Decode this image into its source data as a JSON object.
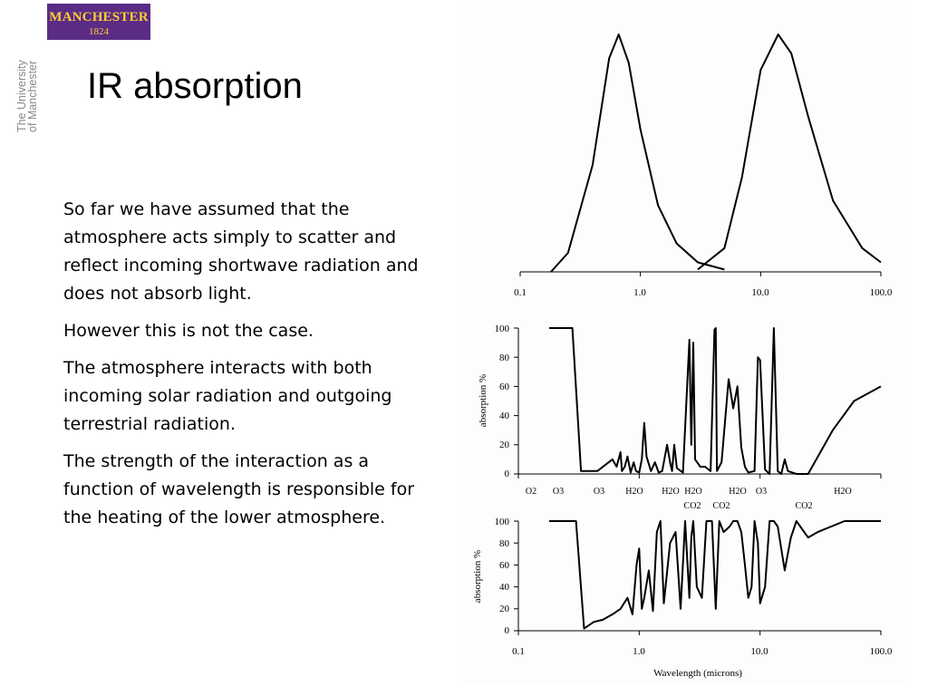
{
  "logo": {
    "name": "MANCHESTER",
    "year": "1824",
    "vertical_lines": [
      "The University",
      "of Manchester"
    ]
  },
  "title": "IR absorption",
  "paragraphs": [
    "So far we have assumed that the atmosphere acts simply to scatter and reflect incoming shortwave radiation and does not absorb light.",
    "However this is not the case.",
    "The atmosphere interacts with both incoming solar radiation and outgoing terrestrial radiation.",
    "The strength of the interaction as a function of wavelength is responsible for the heating of the lower atmosphere."
  ],
  "chart_data": [
    {
      "type": "line",
      "x_ticks": [
        "0.1",
        "1.0",
        "10.0",
        "100.0"
      ],
      "x_scale": "log",
      "xlim": [
        0.1,
        100
      ],
      "y_axis_labels": "none",
      "series": [
        {
          "x": [
            0.18,
            0.25,
            0.4,
            0.55,
            0.66,
            0.8,
            1.0,
            1.4,
            2.0,
            3.0,
            5.0
          ],
          "y": [
            0,
            8,
            45,
            90,
            100,
            88,
            60,
            28,
            12,
            4,
            1
          ]
        },
        {
          "x": [
            3.0,
            5.0,
            7.0,
            10.0,
            14.0,
            18.0,
            25.0,
            40.0,
            70.0,
            100.0
          ],
          "y": [
            1,
            10,
            40,
            85,
            100,
            92,
            65,
            30,
            10,
            4
          ]
        }
      ]
    },
    {
      "type": "line",
      "ylabel": "absorption %",
      "ylim": [
        0,
        100
      ],
      "y_ticks": [
        "100",
        "80",
        "60",
        "40",
        "20",
        "0"
      ],
      "x_scale": "log",
      "xlim": [
        0.1,
        100
      ],
      "gas_labels_row1": [
        "O2",
        "O3",
        "O3",
        "H2O",
        "H2O",
        "H2O",
        "H2O",
        "O3",
        "H2O"
      ],
      "gas_labels_row2": [
        "CO2",
        "CO2",
        "CO2"
      ],
      "series": [
        {
          "x": [
            0.18,
            0.22,
            0.28,
            0.33,
            0.45,
            0.6,
            0.65,
            0.7,
            0.72,
            0.76,
            0.8,
            0.85,
            0.9,
            0.94,
            1.0,
            1.05,
            1.1,
            1.15,
            1.25,
            1.35,
            1.45,
            1.55,
            1.7,
            1.8,
            1.87,
            1.95,
            2.05,
            2.3,
            2.6,
            2.7,
            2.8,
            2.9,
            3.2,
            3.5,
            3.9,
            4.2,
            4.3,
            4.4,
            4.8,
            5.5,
            6.0,
            6.5,
            7.0,
            7.5,
            8.0,
            9.0,
            9.6,
            10.0,
            11.0,
            12.0,
            13.0,
            14.0,
            15.0,
            16.0,
            17.0,
            20.0,
            25.0,
            40.0,
            60.0,
            100.0
          ],
          "y": [
            100,
            100,
            100,
            2,
            2,
            10,
            5,
            15,
            2,
            5,
            12,
            1,
            8,
            2,
            1,
            10,
            35,
            12,
            2,
            8,
            1,
            2,
            20,
            8,
            2,
            20,
            4,
            1,
            92,
            20,
            90,
            10,
            5,
            5,
            2,
            99,
            100,
            2,
            8,
            65,
            45,
            60,
            18,
            5,
            1,
            2,
            80,
            78,
            3,
            0,
            100,
            2,
            0,
            10,
            2,
            0,
            0,
            30,
            50,
            60
          ]
        }
      ]
    },
    {
      "type": "line",
      "xlabel": "Wavelength (microns)",
      "ylabel": "absorption %",
      "ylim": [
        0,
        100
      ],
      "y_ticks": [
        "100",
        "80",
        "60",
        "40",
        "20",
        "0"
      ],
      "x_ticks": [
        "0.1",
        "1.0",
        "10.0",
        "100.0"
      ],
      "x_scale": "log",
      "xlim": [
        0.1,
        100
      ],
      "series": [
        {
          "x": [
            0.18,
            0.25,
            0.3,
            0.35,
            0.42,
            0.5,
            0.6,
            0.7,
            0.8,
            0.88,
            0.95,
            1.0,
            1.05,
            1.1,
            1.2,
            1.3,
            1.4,
            1.5,
            1.6,
            1.8,
            2.0,
            2.2,
            2.4,
            2.6,
            2.7,
            2.8,
            3.0,
            3.3,
            3.6,
            4.0,
            4.3,
            4.6,
            5.0,
            5.6,
            6.0,
            6.5,
            7.0,
            7.5,
            8.0,
            8.5,
            9.0,
            9.6,
            10.0,
            11.0,
            12.0,
            13.0,
            14.0,
            16.0,
            18.0,
            20.0,
            25.0,
            30.0,
            50.0,
            100.0
          ],
          "y": [
            100,
            100,
            100,
            2,
            8,
            10,
            15,
            20,
            30,
            15,
            60,
            75,
            20,
            30,
            55,
            18,
            90,
            100,
            25,
            80,
            90,
            20,
            100,
            30,
            85,
            100,
            40,
            30,
            100,
            100,
            20,
            100,
            90,
            95,
            100,
            100,
            90,
            60,
            30,
            40,
            100,
            80,
            25,
            40,
            100,
            100,
            95,
            55,
            85,
            100,
            85,
            90,
            100,
            100
          ]
        }
      ]
    }
  ]
}
